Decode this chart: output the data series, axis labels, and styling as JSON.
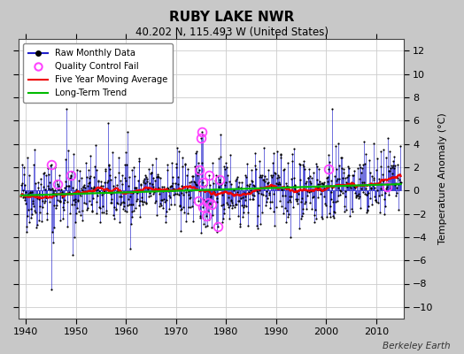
{
  "title": "RUBY LAKE NWR",
  "subtitle": "40.202 N, 115.493 W (United States)",
  "ylabel": "Temperature Anomaly (°C)",
  "attribution": "Berkeley Earth",
  "ylim": [
    -11,
    13
  ],
  "xlim": [
    1938.5,
    2015.5
  ],
  "yticks": [
    -10,
    -8,
    -6,
    -4,
    -2,
    0,
    2,
    4,
    6,
    8,
    10,
    12
  ],
  "xticks": [
    1940,
    1950,
    1960,
    1970,
    1980,
    1990,
    2000,
    2010
  ],
  "bg_color": "#c8c8c8",
  "plot_bg_color": "#ffffff",
  "raw_line_color": "#2222cc",
  "raw_dot_color": "#000000",
  "qc_fail_color": "#ff44ff",
  "moving_avg_color": "#ee0000",
  "trend_color": "#00bb00",
  "seed": 42,
  "start_year": 1939,
  "end_year": 2014
}
